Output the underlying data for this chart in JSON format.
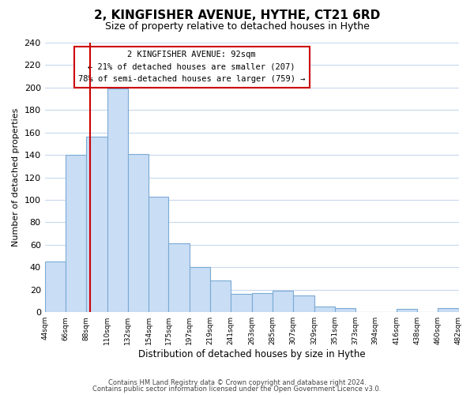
{
  "title": "2, KINGFISHER AVENUE, HYTHE, CT21 6RD",
  "subtitle": "Size of property relative to detached houses in Hythe",
  "bar_values": [
    45,
    140,
    156,
    199,
    141,
    103,
    61,
    40,
    28,
    16,
    17,
    19,
    15,
    5,
    4,
    0,
    0,
    3,
    0,
    4
  ],
  "bin_edges": [
    44,
    66,
    88,
    110,
    132,
    154,
    175,
    197,
    219,
    241,
    263,
    285,
    307,
    329,
    351,
    373,
    394,
    416,
    438,
    460,
    482
  ],
  "tick_labels": [
    "44sqm",
    "66sqm",
    "88sqm",
    "110sqm",
    "132sqm",
    "154sqm",
    "175sqm",
    "197sqm",
    "219sqm",
    "241sqm",
    "263sqm",
    "285sqm",
    "307sqm",
    "329sqm",
    "351sqm",
    "373sqm",
    "394sqm",
    "416sqm",
    "438sqm",
    "460sqm",
    "482sqm"
  ],
  "bar_color": "#c9ddf5",
  "bar_edge_color": "#7aaad4",
  "property_line_x": 92,
  "property_line_color": "#cc0000",
  "xlabel": "Distribution of detached houses by size in Hythe",
  "ylabel": "Number of detached properties",
  "ylim": [
    0,
    240
  ],
  "yticks": [
    0,
    20,
    40,
    60,
    80,
    100,
    120,
    140,
    160,
    180,
    200,
    220,
    240
  ],
  "annotation_title": "2 KINGFISHER AVENUE: 92sqm",
  "annotation_line1": "← 21% of detached houses are smaller (207)",
  "annotation_line2": "78% of semi-detached houses are larger (759) →",
  "footer_line1": "Contains HM Land Registry data © Crown copyright and database right 2024.",
  "footer_line2": "Contains public sector information licensed under the Open Government Licence v3.0.",
  "background_color": "#ffffff",
  "grid_color": "#c8d8ee"
}
